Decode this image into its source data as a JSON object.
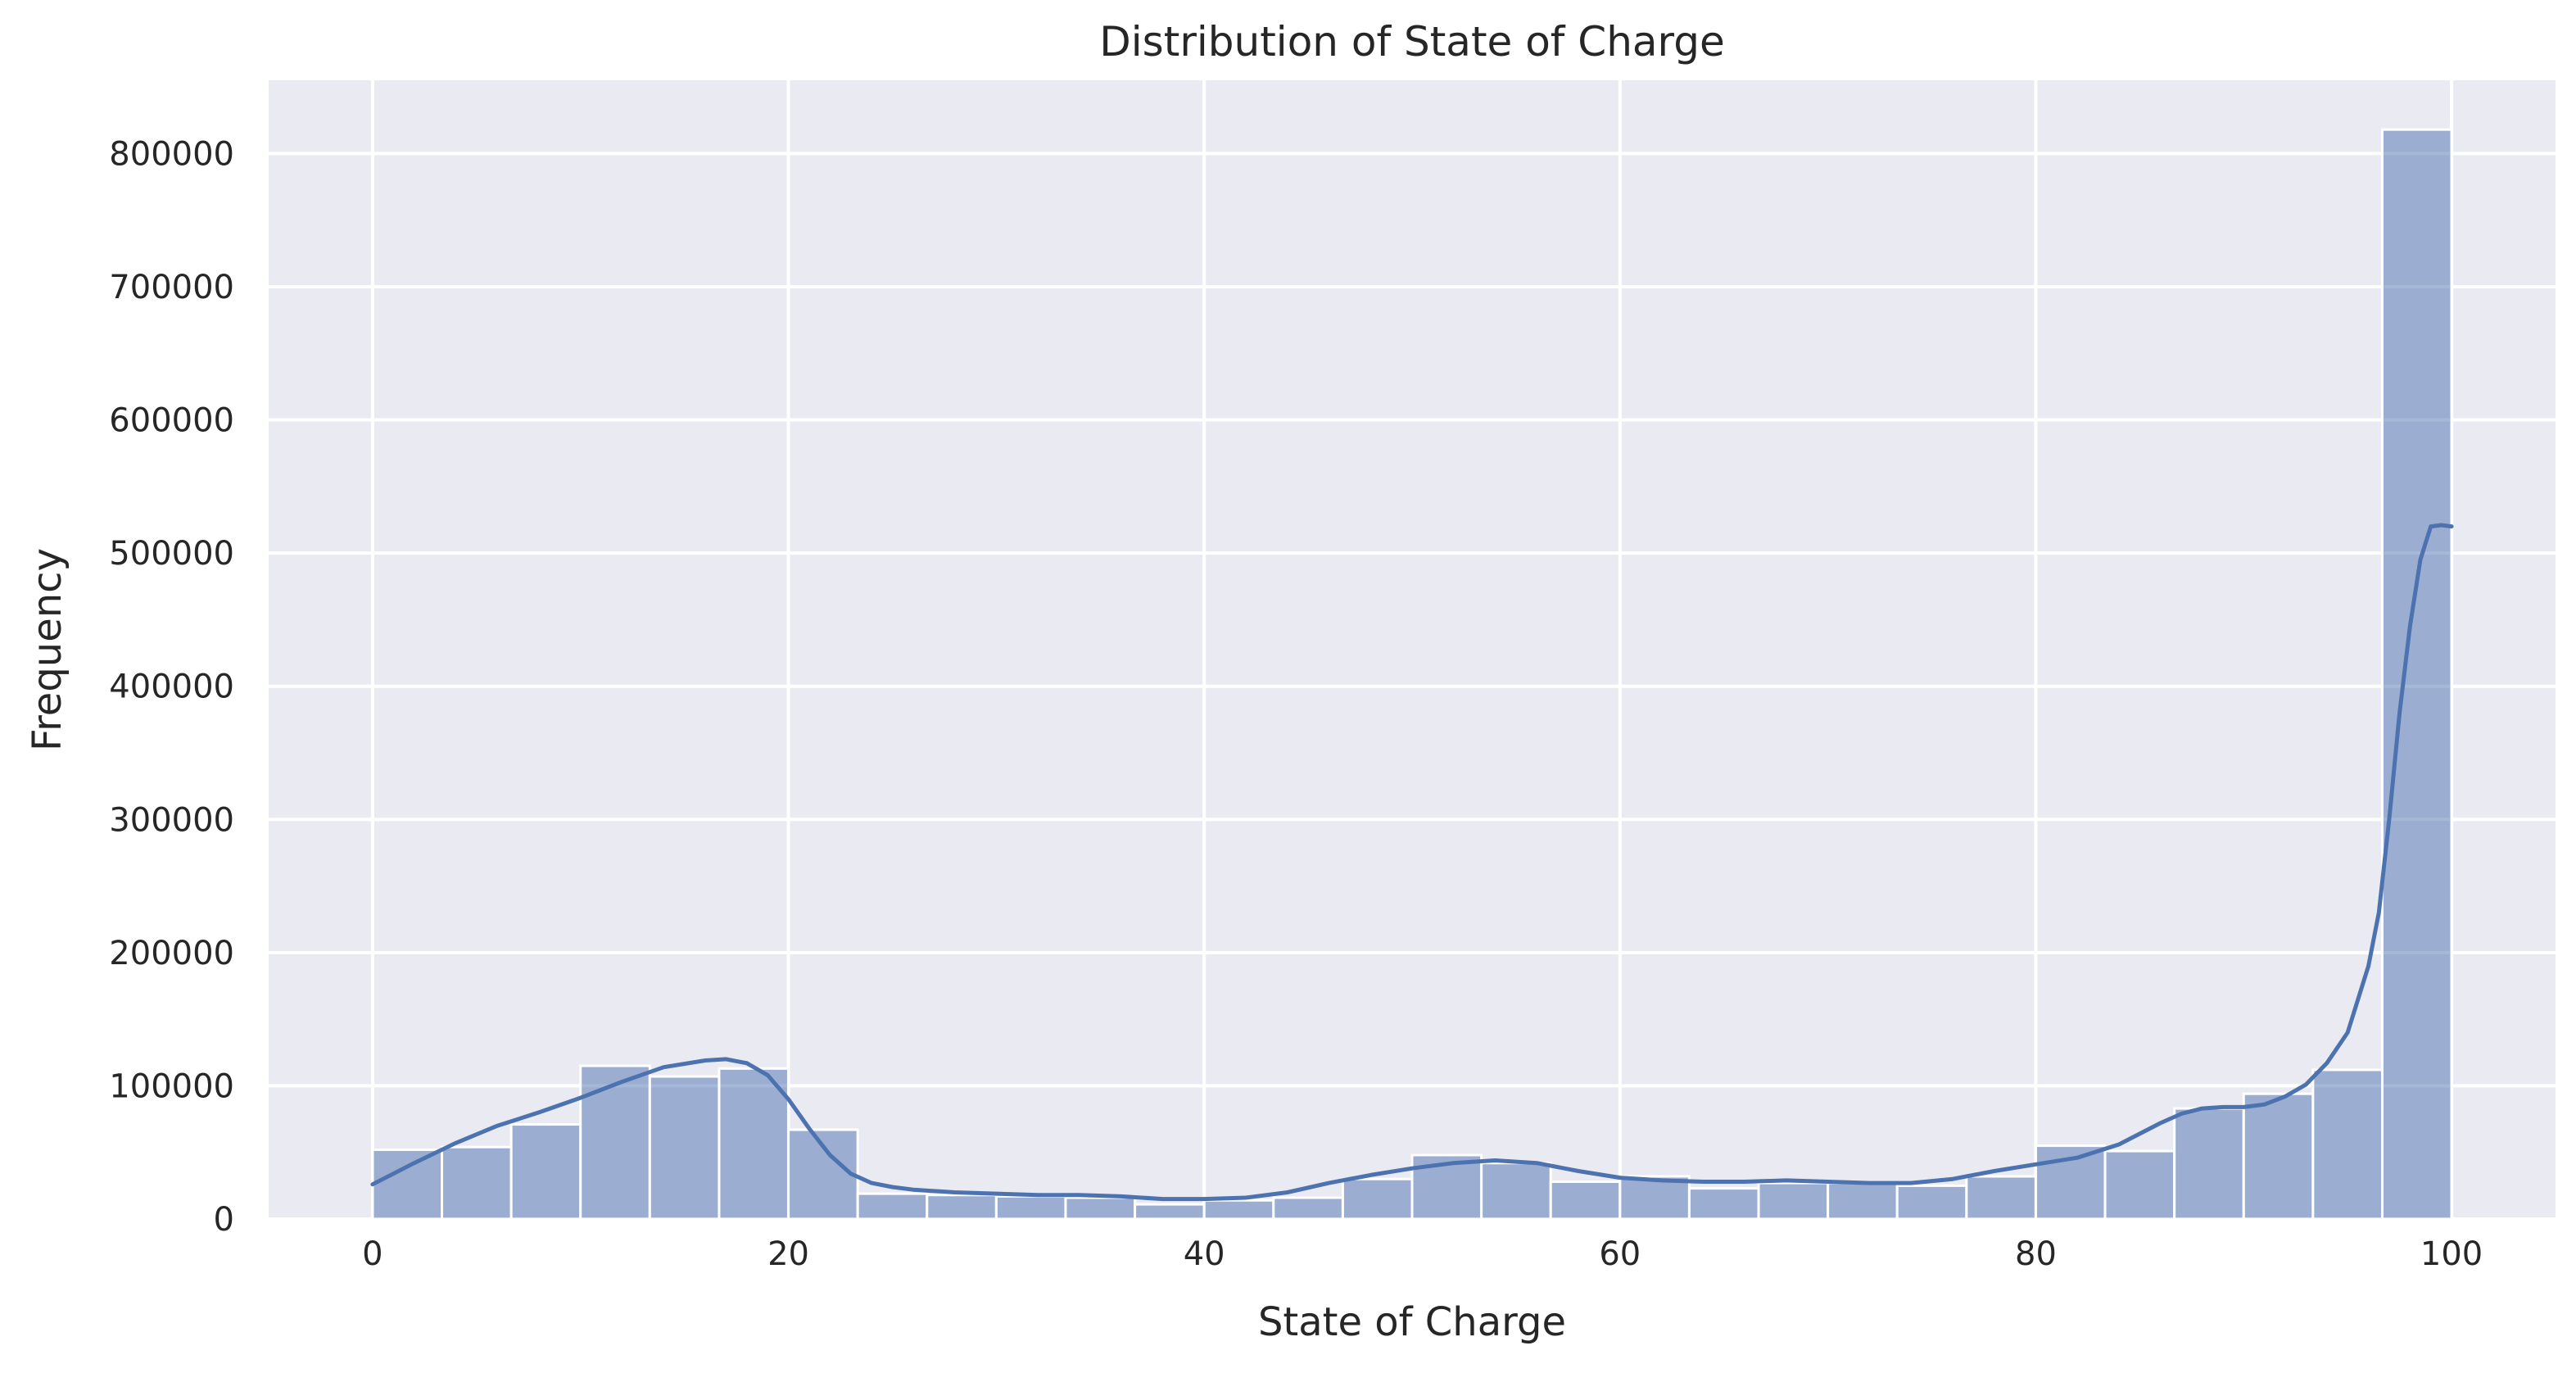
{
  "chart_data": {
    "type": "bar",
    "title": "Distribution of State of Charge",
    "xlabel": "State of Charge",
    "ylabel": "Frequency",
    "xlim": [
      -5,
      105
    ],
    "ylim": [
      0,
      855000
    ],
    "xticks": [
      0,
      20,
      40,
      60,
      80,
      100
    ],
    "yticks": [
      0,
      100000,
      200000,
      300000,
      400000,
      500000,
      600000,
      700000,
      800000
    ],
    "grid": true,
    "bins": {
      "edges": [
        0,
        3.333,
        6.667,
        10,
        13.333,
        16.667,
        20,
        23.333,
        26.667,
        30,
        33.333,
        36.667,
        40,
        43.333,
        46.667,
        50,
        53.333,
        56.667,
        60,
        63.333,
        66.667,
        70,
        73.333,
        76.667,
        80,
        83.333,
        86.667,
        90,
        93.333,
        96.667,
        100
      ],
      "values": [
        52000,
        54000,
        71000,
        115000,
        107000,
        113000,
        67000,
        19000,
        18000,
        17000,
        16000,
        11000,
        14000,
        16000,
        30000,
        48000,
        42000,
        28000,
        32000,
        23000,
        27000,
        27000,
        25000,
        32000,
        55000,
        51000,
        83000,
        94000,
        112000,
        818000
      ]
    },
    "kde": {
      "x": [
        0,
        2,
        4,
        6,
        8,
        10,
        12,
        14,
        16,
        17,
        18,
        19,
        20,
        21,
        22,
        23,
        24,
        25,
        26,
        28,
        30,
        32,
        34,
        36,
        38,
        40,
        42,
        44,
        46,
        48,
        50,
        52,
        54,
        56,
        58,
        60,
        62,
        64,
        66,
        68,
        70,
        72,
        74,
        76,
        78,
        80,
        82,
        84,
        86,
        87,
        88,
        89,
        90,
        91,
        92,
        93,
        94,
        95,
        96,
        96.5,
        97,
        97.5,
        98,
        98.5,
        99,
        99.5,
        100
      ],
      "y": [
        26000,
        42000,
        57000,
        70000,
        80000,
        91000,
        103000,
        114000,
        119000,
        120000,
        117000,
        108000,
        90000,
        68000,
        48000,
        34000,
        27000,
        24000,
        22000,
        20000,
        19000,
        18000,
        18000,
        17000,
        15000,
        15000,
        16000,
        20000,
        27000,
        33000,
        38000,
        42000,
        44000,
        42000,
        36000,
        31000,
        29000,
        28000,
        28000,
        29000,
        28000,
        27000,
        27000,
        30000,
        36000,
        41000,
        46000,
        56000,
        72000,
        79000,
        83000,
        84000,
        84000,
        86000,
        92000,
        101000,
        117000,
        140000,
        190000,
        230000,
        300000,
        380000,
        445000,
        495000,
        520000,
        521000,
        520000
      ]
    },
    "colors": {
      "background": "#eaeaf2",
      "grid": "#ffffff",
      "bar_fill": "#4c72b0",
      "bar_opacity": 0.5,
      "kde_line": "#4c72b0"
    }
  }
}
